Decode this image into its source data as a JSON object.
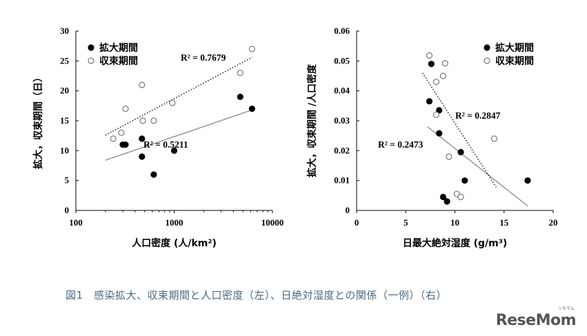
{
  "caption": "図1　感染拡大、収束期間と人口密度（左）、日絶対湿度との関係（一例）（右）",
  "logo": "ReseMom",
  "logo_ruby": "リセマム",
  "chart_data": [
    {
      "type": "scatter",
      "xlabel": "人口密度 (人/km²)",
      "ylabel": "拡大，収束期間（日）",
      "xscale": "log",
      "xlim": [
        100,
        10000
      ],
      "ylim": [
        0,
        30
      ],
      "xticks": [
        "100",
        "1000",
        "10000"
      ],
      "yticks": [
        "0",
        "5",
        "10",
        "15",
        "20",
        "25",
        "30"
      ],
      "legend_position": "top-left",
      "grid": false,
      "series": [
        {
          "name": "拡大期間",
          "marker": "filled-circle",
          "points": [
            [
              300,
              11
            ],
            [
              320,
              11
            ],
            [
              470,
              12
            ],
            [
              470,
              9
            ],
            [
              620,
              6
            ],
            [
              1000,
              10
            ],
            [
              4700,
              19
            ],
            [
              6200,
              17
            ]
          ],
          "trendline": {
            "from": [
              200,
              8.4
            ],
            "to": [
              6200,
              16.8
            ],
            "style": "solid",
            "label": "R² = 0.5211"
          }
        },
        {
          "name": "収束期間",
          "marker": "open-circle",
          "points": [
            [
              240,
              12
            ],
            [
              290,
              13
            ],
            [
              320,
              17
            ],
            [
              470,
              21
            ],
            [
              480,
              15
            ],
            [
              620,
              15
            ],
            [
              960,
              18
            ],
            [
              4700,
              23
            ],
            [
              6200,
              27
            ]
          ],
          "trendline": {
            "from": [
              200,
              12.6
            ],
            "to": [
              6200,
              25.6
            ],
            "style": "dotted",
            "label": "R² = 0.7679"
          }
        }
      ]
    },
    {
      "type": "scatter",
      "xlabel": "日最大絶対湿度 (g/m³)",
      "ylabel": "拡大，収束期間 /人口密度",
      "xlim": [
        0,
        20
      ],
      "ylim": [
        0,
        0.06
      ],
      "xticks": [
        "0",
        "5",
        "10",
        "15",
        "20"
      ],
      "yticks": [
        "0",
        "0.01",
        "0.02",
        "0.03",
        "0.04",
        "0.05",
        "0.06"
      ],
      "legend_position": "top-right",
      "grid": false,
      "series": [
        {
          "name": "拡大期間",
          "marker": "filled-circle",
          "points": [
            [
              7.6,
              0.049
            ],
            [
              7.4,
              0.0365
            ],
            [
              8.4,
              0.0335
            ],
            [
              8.4,
              0.0258
            ],
            [
              10.6,
              0.0195
            ],
            [
              8.8,
              0.0045
            ],
            [
              9.2,
              0.003
            ],
            [
              11.0,
              0.01
            ],
            [
              17.4,
              0.01
            ]
          ],
          "trendline": {
            "from": [
              7.2,
              0.028
            ],
            "to": [
              17.4,
              0.0015
            ],
            "style": "solid",
            "label": "R² = 0.2473"
          }
        },
        {
          "name": "収束期間",
          "marker": "open-circle",
          "points": [
            [
              7.4,
              0.0518
            ],
            [
              9.0,
              0.0492
            ],
            [
              8.1,
              0.043
            ],
            [
              8.8,
              0.045
            ],
            [
              8.1,
              0.032
            ],
            [
              9.4,
              0.018
            ],
            [
              10.2,
              0.0055
            ],
            [
              10.6,
              0.0045
            ],
            [
              14.0,
              0.024
            ]
          ],
          "trendline": {
            "from": [
              6.7,
              0.046
            ],
            "to": [
              14.2,
              0.0078
            ],
            "style": "dotted",
            "label": "R² = 0.2847"
          }
        }
      ]
    }
  ]
}
